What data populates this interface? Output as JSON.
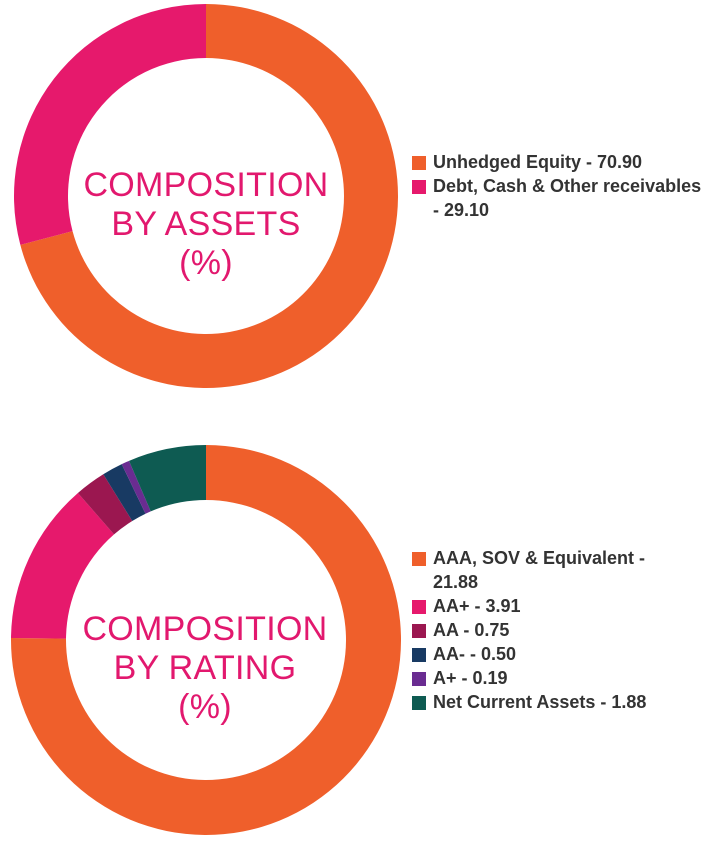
{
  "chart_data": [
    {
      "type": "pie",
      "title": [
        "COMPOSITION",
        "BY ASSETS",
        "(%)"
      ],
      "slices": [
        {
          "label": "Unhedged Equity - 70.90",
          "value": 70.9,
          "color": "#ef5f2b"
        },
        {
          "label": "Debt, Cash & Other receivables - 29.10",
          "label_lines": [
            "Debt, Cash & Other receivables",
            "- 29.10"
          ],
          "value": 29.1,
          "color": "#e6196c"
        }
      ],
      "legend_position": "right"
    },
    {
      "type": "pie",
      "title": [
        "COMPOSITION",
        "BY RATING",
        "(%)"
      ],
      "slices": [
        {
          "label": "AAA, SOV & Equivalent - 21.88",
          "label_lines": [
            "AAA, SOV & Equivalent -",
            "21.88"
          ],
          "value": 21.88,
          "color": "#ef5f2b"
        },
        {
          "label": "AA+ - 3.91",
          "value": 3.91,
          "color": "#e6196c"
        },
        {
          "label": "AA - 0.75",
          "value": 0.75,
          "color": "#9b1750"
        },
        {
          "label": "AA- - 0.50",
          "value": 0.5,
          "color": "#183a63"
        },
        {
          "label": "A+ - 0.19",
          "value": 0.19,
          "color": "#6a2c91"
        },
        {
          "label": "Net Current Assets - 1.88",
          "value": 1.88,
          "color": "#0e5b52"
        }
      ],
      "legend_position": "right"
    }
  ]
}
